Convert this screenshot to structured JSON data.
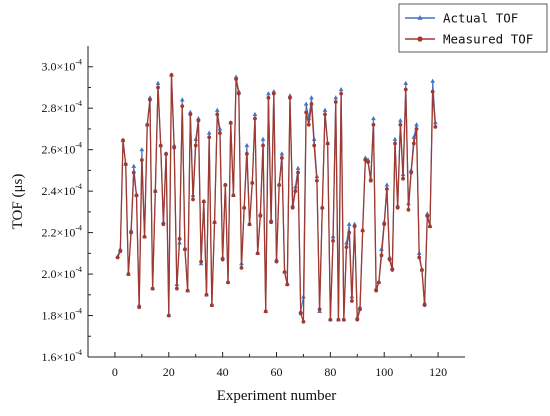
{
  "chart_data": {
    "type": "line",
    "xlabel": "Experiment number",
    "ylabel": "TOF (μs)",
    "xlim": [
      -10,
      130
    ],
    "ylim": [
      0.00016,
      0.00031
    ],
    "x_ticks": [
      0,
      20,
      40,
      60,
      80,
      100,
      120
    ],
    "y_ticks": [
      {
        "value": 0.00016,
        "mantissa": "1.6",
        "exp": "-4"
      },
      {
        "value": 0.00018,
        "mantissa": "1.8",
        "exp": "-4"
      },
      {
        "value": 0.0002,
        "mantissa": "2.0",
        "exp": "-4"
      },
      {
        "value": 0.00022,
        "mantissa": "2.2",
        "exp": "-4"
      },
      {
        "value": 0.00024,
        "mantissa": "2.4",
        "exp": "-4"
      },
      {
        "value": 0.00026,
        "mantissa": "2.6",
        "exp": "-4"
      },
      {
        "value": 0.00028,
        "mantissa": "2.8",
        "exp": "-4"
      },
      {
        "value": 0.0003,
        "mantissa": "3.0",
        "exp": "-4"
      }
    ],
    "y_tick_separator": "×10",
    "legend_position": "top-right",
    "x": [
      1,
      2,
      3,
      4,
      5,
      6,
      7,
      8,
      9,
      10,
      11,
      12,
      13,
      14,
      15,
      16,
      17,
      18,
      19,
      20,
      21,
      22,
      23,
      24,
      25,
      26,
      27,
      28,
      29,
      30,
      31,
      32,
      33,
      34,
      35,
      36,
      37,
      38,
      39,
      40,
      41,
      42,
      43,
      44,
      45,
      46,
      47,
      48,
      49,
      50,
      51,
      52,
      53,
      54,
      55,
      56,
      57,
      58,
      59,
      60,
      61,
      62,
      63,
      64,
      65,
      66,
      67,
      68,
      69,
      70,
      71,
      72,
      73,
      74,
      75,
      76,
      77,
      78,
      79,
      80,
      81,
      82,
      83,
      84,
      85,
      86,
      87,
      88,
      89,
      90,
      91,
      92,
      93,
      94,
      95,
      96,
      97,
      98,
      99,
      100,
      101,
      102,
      103,
      104,
      105,
      106,
      107,
      108,
      109,
      110,
      111,
      112,
      113,
      114,
      115,
      116,
      117,
      118,
      119
    ],
    "series": [
      {
        "name": "Actual TOF",
        "color": "#4472c4",
        "marker": "triangle",
        "values": [
          0.0002085,
          0.000212,
          0.0002645,
          0.000253,
          0.0002,
          0.000221,
          0.000252,
          0.000238,
          0.000185,
          0.00026,
          0.000218,
          0.000272,
          0.000285,
          0.000193,
          0.00024,
          0.000292,
          0.000262,
          0.000225,
          0.000258,
          0.00018,
          0.000296,
          0.000262,
          0.000195,
          0.000215,
          0.000284,
          0.000212,
          0.000192,
          0.000278,
          0.000238,
          0.000265,
          0.000275,
          0.000205,
          0.000235,
          0.00019,
          0.000268,
          0.000185,
          0.000225,
          0.000279,
          0.00027,
          0.000208,
          0.000243,
          0.000196,
          0.000273,
          0.000238,
          0.000295,
          0.000288,
          0.000205,
          0.000232,
          0.000262,
          0.000224,
          0.000244,
          0.000277,
          0.00021,
          0.000229,
          0.000265,
          0.000182,
          0.000287,
          0.000226,
          0.000288,
          0.000207,
          0.000243,
          0.000258,
          0.000201,
          0.000195,
          0.000286,
          0.000233,
          0.000242,
          0.000251,
          0.000182,
          0.000189,
          0.000282,
          0.000275,
          0.000285,
          0.000265,
          0.000247,
          0.000182,
          0.000232,
          0.000279,
          0.000263,
          0.000178,
          0.000218,
          0.000285,
          0.000178,
          0.000289,
          0.000178,
          0.000215,
          0.000224,
          0.000189,
          0.000224,
          0.000179,
          0.000184,
          0.000221,
          0.000256,
          0.000255,
          0.000246,
          0.000275,
          0.000193,
          0.000196,
          0.000212,
          0.000225,
          0.000243,
          0.000208,
          0.000203,
          0.000265,
          0.000233,
          0.000274,
          0.000248,
          0.000292,
          0.000234,
          0.00025,
          0.000266,
          0.000272,
          0.00021,
          0.000202,
          0.000186,
          0.000229,
          0.000223,
          0.000293,
          0.000273
        ],
        "note": ""
      },
      {
        "name": "Measured TOF",
        "color": "#a0392f",
        "marker": "circle",
        "values": [
          0.000208,
          0.000211,
          0.0002645,
          0.000253,
          0.0002,
          0.00022,
          0.000249,
          0.000238,
          0.000184,
          0.000255,
          0.000218,
          0.000272,
          0.000284,
          0.000193,
          0.00024,
          0.00029,
          0.000262,
          0.000224,
          0.000258,
          0.00018,
          0.000296,
          0.000261,
          0.000193,
          0.000217,
          0.000281,
          0.000212,
          0.000192,
          0.000277,
          0.000236,
          0.000262,
          0.000274,
          0.000206,
          0.000235,
          0.00019,
          0.000266,
          0.000185,
          0.000225,
          0.000277,
          0.000268,
          0.000207,
          0.000243,
          0.000196,
          0.000273,
          0.000238,
          0.000294,
          0.000287,
          0.000203,
          0.000232,
          0.000258,
          0.000224,
          0.000244,
          0.000275,
          0.00021,
          0.000228,
          0.000262,
          0.000182,
          0.000285,
          0.000225,
          0.000287,
          0.000206,
          0.000243,
          0.000256,
          0.000201,
          0.000195,
          0.000285,
          0.000232,
          0.00024,
          0.000249,
          0.000181,
          0.000177,
          0.000278,
          0.000272,
          0.000282,
          0.000262,
          0.000245,
          0.000183,
          0.000232,
          0.000277,
          0.000263,
          0.000178,
          0.000216,
          0.000283,
          0.000178,
          0.000287,
          0.000178,
          0.000213,
          0.00022,
          0.000187,
          0.000223,
          0.000178,
          0.000183,
          0.000221,
          0.000255,
          0.000254,
          0.000245,
          0.000272,
          0.000192,
          0.000196,
          0.000209,
          0.000224,
          0.000241,
          0.000207,
          0.000202,
          0.000263,
          0.000232,
          0.000272,
          0.000246,
          0.000289,
          0.000231,
          0.000249,
          0.000263,
          0.00027,
          0.000208,
          0.000202,
          0.000185,
          0.000228,
          0.000223,
          0.000288,
          0.000271
        ]
      }
    ]
  }
}
